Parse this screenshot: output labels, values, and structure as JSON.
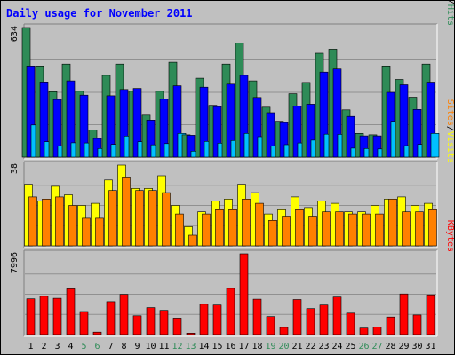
{
  "chart_data": {
    "title": "Daily usage for November 2011",
    "x": [
      "1",
      "2",
      "3",
      "4",
      "5",
      "6",
      "7",
      "8",
      "9",
      "10",
      "11",
      "12",
      "13",
      "14",
      "15",
      "16",
      "17",
      "18",
      "19",
      "20",
      "21",
      "22",
      "23",
      "24",
      "25",
      "26",
      "27",
      "28",
      "29",
      "30",
      "31"
    ],
    "weekend_days": [
      "5",
      "6",
      "12",
      "13",
      "19",
      "20",
      "26",
      "27"
    ],
    "panels": [
      {
        "type": "bar",
        "name": "pages-files-hits",
        "ymax_label": "634",
        "ylim": [
          0,
          634
        ],
        "legend": [
          "Pages",
          "/",
          "Files",
          "/",
          "Hits"
        ],
        "legend_colors": [
          "#00c0ff",
          "#000000",
          "#0000ff",
          "#000000",
          "#2e8b57"
        ],
        "series": [
          {
            "name": "Hits",
            "color": "#2e8b57",
            "values": [
              634,
              446,
              320,
              455,
              322,
              132,
              400,
              455,
              322,
              205,
              322,
              464,
              109,
              386,
              253,
              455,
              557,
              373,
              244,
              175,
              310,
              365,
              508,
              528,
              231,
              116,
              109,
              446,
              380,
              293,
              455
            ]
          },
          {
            "name": "Files",
            "color": "#0000ff",
            "values": [
              446,
              368,
              282,
              373,
              303,
              91,
              300,
              331,
              336,
              181,
              283,
              349,
              107,
              342,
              247,
              357,
              400,
              292,
              217,
              169,
              249,
              259,
              416,
              431,
              199,
              104,
              104,
              317,
              354,
              233,
              367
            ]
          },
          {
            "name": "Pages",
            "color": "#00c0ff",
            "values": [
              157,
              75,
              55,
              70,
              69,
              42,
              62,
              103,
              75,
              60,
              66,
              116,
              29,
              77,
              68,
              81,
              116,
              100,
              54,
              61,
              69,
              83,
              112,
              111,
              44,
              42,
              40,
              175,
              56,
              62,
              116
            ]
          }
        ]
      },
      {
        "type": "bar",
        "name": "sites-visits",
        "ymax_label": "38",
        "ylim": [
          0,
          38
        ],
        "legend": [
          "Sites",
          "/",
          "Visits"
        ],
        "legend_colors": [
          "#ff8000",
          "#000000",
          "#ffff00"
        ],
        "series": [
          {
            "name": "Visits",
            "color": "#ffff00",
            "values": [
              29,
              21,
              28,
              24,
              19,
              20,
              31,
              38,
              27,
              27,
              33,
              19,
              9,
              16,
              21,
              22,
              29,
              25,
              15,
              17,
              23,
              18,
              21,
              20,
              16,
              16,
              19,
              22,
              23,
              19,
              20
            ]
          },
          {
            "name": "Sites",
            "color": "#ff8000",
            "values": [
              23,
              22,
              23,
              19,
              13,
              13,
              26,
              32,
              26,
              26,
              25,
              15,
              5,
              15,
              17,
              17,
              22,
              20,
              12,
              14,
              17,
              14,
              16,
              16,
              15,
              15,
              15,
              22,
              16,
              16,
              17
            ]
          }
        ]
      },
      {
        "type": "bar",
        "name": "kbytes",
        "ymax_label": "7996",
        "ylim": [
          0,
          7996
        ],
        "legend": [
          "KBytes"
        ],
        "legend_colors": [
          "#ff0000"
        ],
        "series": [
          {
            "name": "KBytes",
            "color": "#ff0000",
            "values": [
              3545,
              3793,
              3596,
              4531,
              2287,
              247,
              3264,
              3988,
              1863,
              2674,
              2401,
              1632,
              150,
              3008,
              2930,
              4582,
              7996,
              3510,
              1785,
              710,
              3470,
              2577,
              2930,
              3714,
              2126,
              640,
              740,
              1739,
              4025,
              1938,
              3938
            ]
          }
        ]
      }
    ]
  }
}
